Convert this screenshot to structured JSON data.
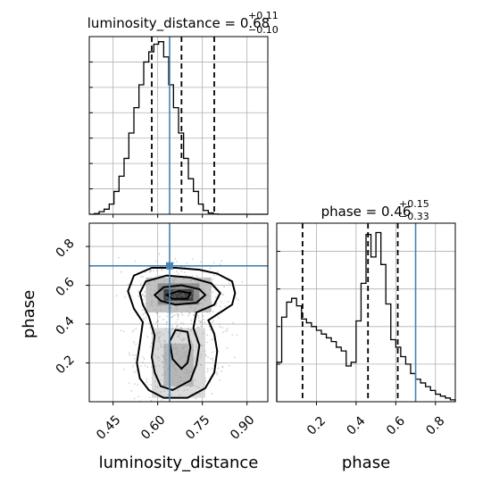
{
  "chart_data": [
    {
      "type": "histogram",
      "panel": "luminosity_distance-marginal",
      "title": {
        "param": "luminosity_distance",
        "eq": " = ",
        "median": "0.68",
        "upper": "+0.11",
        "lower": "−0.10"
      },
      "bins": {
        "edges": [
          0.37,
          0.387,
          0.403,
          0.42,
          0.437,
          0.453,
          0.47,
          0.487,
          0.503,
          0.52,
          0.537,
          0.553,
          0.57,
          0.587,
          0.603,
          0.62,
          0.637,
          0.653,
          0.67,
          0.687,
          0.703,
          0.72,
          0.737,
          0.753,
          0.77,
          0.787,
          0.803,
          0.82,
          0.837,
          0.853,
          0.87,
          0.887,
          0.903,
          0.92,
          0.937,
          0.953,
          0.97
        ],
        "counts": [
          0.0,
          0.25,
          1,
          2,
          4,
          9,
          15,
          22,
          32,
          42,
          51,
          60,
          64,
          67,
          68,
          62,
          51,
          42,
          32,
          22,
          14,
          9,
          4,
          1.5,
          0.5,
          0.1,
          0,
          0,
          0,
          0,
          0,
          0,
          0,
          0,
          0,
          0
        ]
      },
      "quantiles": [
        0.58,
        0.68,
        0.79
      ],
      "truth": 0.64,
      "xlim": [
        0.37,
        0.97
      ],
      "ylim": [
        0,
        70
      ]
    },
    {
      "type": "histogram",
      "panel": "phase-marginal",
      "title": {
        "param": "phase",
        "eq": " = ",
        "median": "0.46",
        "upper": "+0.15",
        "lower": "−0.33"
      },
      "bins": {
        "edges": [
          0.0,
          0.025,
          0.05,
          0.075,
          0.1,
          0.125,
          0.15,
          0.175,
          0.2,
          0.225,
          0.25,
          0.275,
          0.3,
          0.325,
          0.35,
          0.375,
          0.4,
          0.425,
          0.45,
          0.475,
          0.5,
          0.525,
          0.55,
          0.575,
          0.6,
          0.625,
          0.65,
          0.675,
          0.7,
          0.725,
          0.75,
          0.775,
          0.8,
          0.825,
          0.85,
          0.875,
          0.9
        ],
        "counts": [
          21,
          45,
          53,
          55,
          51,
          44,
          42,
          40,
          38,
          36,
          34,
          32,
          29,
          27,
          19,
          21,
          43,
          63,
          89,
          77,
          90,
          73,
          52,
          33,
          29,
          24,
          20,
          15,
          12,
          10,
          8,
          6,
          4,
          3,
          2,
          1
        ]
      },
      "quantiles": [
        0.13,
        0.46,
        0.61
      ],
      "truth": 0.7,
      "xlim": [
        0.0,
        0.9
      ],
      "ylim": [
        0,
        95
      ]
    },
    {
      "type": "scatter",
      "panel": "joint-density",
      "x_param": "luminosity_distance",
      "y_param": "phase",
      "xlim": [
        0.37,
        0.97
      ],
      "ylim": [
        0.0,
        0.92
      ],
      "truth": {
        "x": 0.64,
        "y": 0.7
      },
      "levels": [
        [
          [
            0.53,
            0.2
          ],
          [
            0.54,
            0.3
          ],
          [
            0.55,
            0.41
          ],
          [
            0.52,
            0.48
          ],
          [
            0.5,
            0.57
          ],
          [
            0.52,
            0.65
          ],
          [
            0.58,
            0.69
          ],
          [
            0.66,
            0.69
          ],
          [
            0.74,
            0.68
          ],
          [
            0.8,
            0.66
          ],
          [
            0.85,
            0.62
          ],
          [
            0.86,
            0.56
          ],
          [
            0.85,
            0.5
          ],
          [
            0.81,
            0.46
          ],
          [
            0.77,
            0.42
          ],
          [
            0.79,
            0.35
          ],
          [
            0.8,
            0.26
          ],
          [
            0.79,
            0.15
          ],
          [
            0.76,
            0.07
          ],
          [
            0.7,
            0.02
          ],
          [
            0.62,
            0.02
          ],
          [
            0.57,
            0.06
          ],
          [
            0.54,
            0.12
          ]
        ],
        [
          [
            0.58,
            0.23
          ],
          [
            0.59,
            0.34
          ],
          [
            0.57,
            0.44
          ],
          [
            0.55,
            0.5
          ],
          [
            0.54,
            0.56
          ],
          [
            0.56,
            0.62
          ],
          [
            0.63,
            0.65
          ],
          [
            0.71,
            0.64
          ],
          [
            0.78,
            0.61
          ],
          [
            0.81,
            0.56
          ],
          [
            0.79,
            0.5
          ],
          [
            0.73,
            0.46
          ],
          [
            0.72,
            0.38
          ],
          [
            0.74,
            0.29
          ],
          [
            0.73,
            0.19
          ],
          [
            0.71,
            0.11
          ],
          [
            0.65,
            0.06
          ],
          [
            0.61,
            0.08
          ],
          [
            0.59,
            0.15
          ]
        ],
        [
          [
            0.65,
            0.22
          ],
          [
            0.64,
            0.31
          ],
          [
            0.66,
            0.37
          ],
          [
            0.7,
            0.36
          ],
          [
            0.71,
            0.28
          ],
          [
            0.7,
            0.2
          ],
          [
            0.68,
            0.17
          ]
        ],
        [
          [
            0.59,
            0.55
          ],
          [
            0.62,
            0.59
          ],
          [
            0.68,
            0.6
          ],
          [
            0.74,
            0.58
          ],
          [
            0.76,
            0.55
          ],
          [
            0.73,
            0.51
          ],
          [
            0.66,
            0.5
          ],
          [
            0.61,
            0.52
          ]
        ],
        [
          [
            0.63,
            0.55
          ],
          [
            0.67,
            0.57
          ],
          [
            0.71,
            0.56
          ],
          [
            0.7,
            0.53
          ],
          [
            0.65,
            0.53
          ]
        ]
      ],
      "density_blocks": [
        {
          "x": [
            0.62,
            0.72
          ],
          "y": [
            0.52,
            0.58
          ],
          "shade": 0.9
        },
        {
          "x": [
            0.6,
            0.74
          ],
          "y": [
            0.5,
            0.61
          ],
          "shade": 0.55
        },
        {
          "x": [
            0.56,
            0.78
          ],
          "y": [
            0.46,
            0.64
          ],
          "shade": 0.3
        },
        {
          "x": [
            0.62,
            0.72
          ],
          "y": [
            0.08,
            0.3
          ],
          "shade": 0.35
        },
        {
          "x": [
            0.58,
            0.76
          ],
          "y": [
            0.02,
            0.38
          ],
          "shade": 0.18
        }
      ]
    }
  ],
  "ticks": {
    "x_distance": [
      "0.45",
      "0.60",
      "0.75",
      "0.90"
    ],
    "x_phase": [
      "0.2",
      "0.4",
      "0.6",
      "0.8"
    ],
    "y_phase": [
      "0.2",
      "0.4",
      "0.6",
      "0.8"
    ]
  },
  "labels": {
    "x_bottom_left": "luminosity_distance",
    "x_bottom_right": "phase",
    "y_left": "phase"
  },
  "colors": {
    "truth": "#4682b4",
    "grid": "#b0b0b0",
    "points": "#9a9a9a"
  }
}
